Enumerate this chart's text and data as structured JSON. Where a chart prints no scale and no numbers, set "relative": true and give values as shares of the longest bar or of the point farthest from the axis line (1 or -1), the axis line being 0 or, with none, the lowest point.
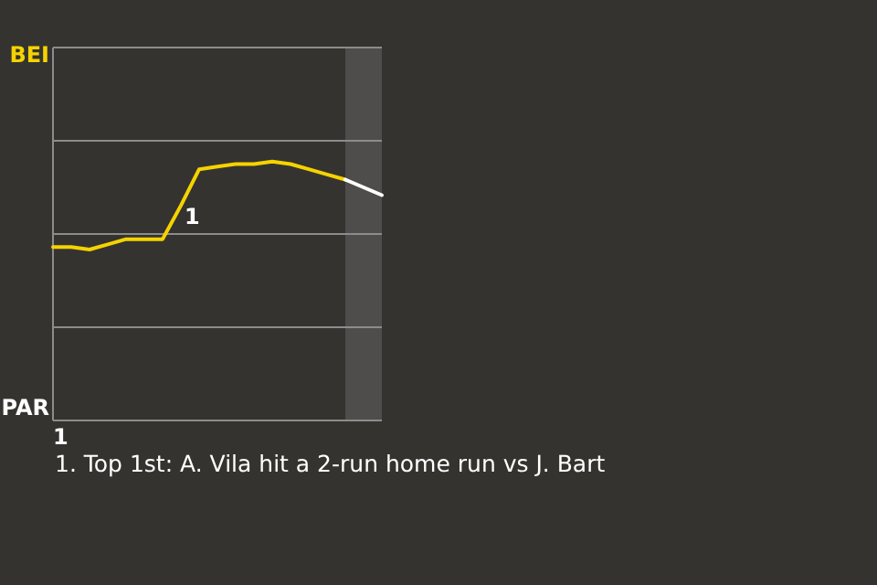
{
  "chart_data": {
    "type": "line",
    "relative": true,
    "categories": [
      null,
      null,
      null,
      null,
      null,
      null,
      null,
      null,
      null,
      null,
      null,
      null,
      null,
      null,
      null,
      null,
      null,
      null,
      null
    ],
    "series": [
      {
        "color": "#f5d300",
        "values": [
          0.67,
          0.67,
          0.66,
          0.68,
          0.7,
          0.7,
          0.7,
          0.83,
          0.97,
          0.98,
          0.99,
          0.99,
          1,
          0.99,
          0.97,
          0.95,
          0.93,
          null,
          null
        ]
      },
      {
        "color": "#ffffff",
        "values": [
          null,
          null,
          null,
          null,
          null,
          null,
          null,
          null,
          null,
          null,
          null,
          null,
          null,
          null,
          null,
          null,
          0.93,
          0.9,
          0.87
        ]
      }
    ],
    "ref_lines": [
      {
        "axis": "y",
        "value": 0.36,
        "color": "#8c8c8c"
      },
      {
        "axis": "y",
        "value": 0.72,
        "color": "#8c8c8c"
      },
      {
        "axis": "y",
        "value": 1.08,
        "color": "#8c8c8c"
      }
    ],
    "annotations": [
      {
        "text": "1",
        "y": 0.97
      },
      "BEI",
      "PAR",
      "1",
      "1. Top 1st: A. Vila hit a 2-run home run vs J. Bart"
    ]
  }
}
